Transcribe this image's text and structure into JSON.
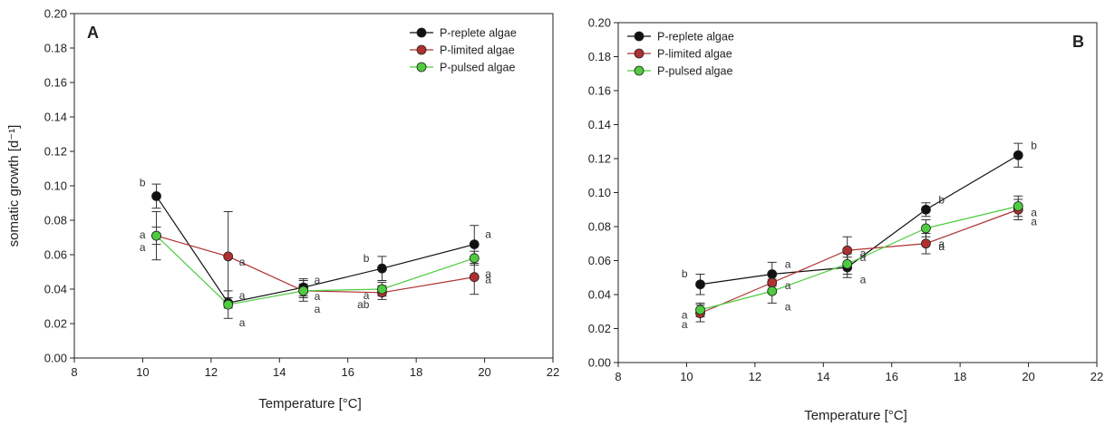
{
  "chart_data": [
    {
      "type": "scatter",
      "panel_label": "A",
      "xlabel": "Temperature [°C]",
      "ylabel": "somatic growth [d⁻¹]",
      "xlim": [
        8,
        22
      ],
      "ylim": [
        0,
        0.2
      ],
      "xticks": [
        "8",
        "10",
        "12",
        "14",
        "16",
        "18",
        "20",
        "22"
      ],
      "yticks": [
        "0.00",
        "0.02",
        "0.04",
        "0.06",
        "0.08",
        "0.10",
        "0.12",
        "0.14",
        "0.16",
        "0.18",
        "0.20"
      ],
      "legend_position": "top-right",
      "grid": false,
      "series": [
        {
          "name": "P-replete algae",
          "color": "#111111",
          "x": [
            10.4,
            12.5,
            14.7,
            17.0,
            19.7
          ],
          "y": [
            0.094,
            0.032,
            0.041,
            0.052,
            0.066
          ],
          "err": [
            0.007,
            0.003,
            0.005,
            0.007,
            0.011
          ],
          "labels": [
            "b",
            "a",
            "a",
            "b",
            "a"
          ]
        },
        {
          "name": "P-limited algae",
          "color": "#b03030",
          "x": [
            10.4,
            12.5,
            14.7,
            17.0,
            19.7
          ],
          "y": [
            0.071,
            0.059,
            0.039,
            0.038,
            0.047
          ],
          "err": [
            0.005,
            0.026,
            0.004,
            0.004,
            0.01
          ],
          "labels": [
            "a",
            "a",
            "a",
            "a",
            "a"
          ]
        },
        {
          "name": "P-pulsed algae",
          "color": "#4ecb3f",
          "x": [
            10.4,
            12.5,
            14.7,
            17.0,
            19.7
          ],
          "y": [
            0.071,
            0.031,
            0.039,
            0.04,
            0.058
          ],
          "err": [
            0.014,
            0.008,
            0.006,
            0.004,
            0.004
          ],
          "labels": [
            "a",
            "a",
            "a",
            "ab",
            "a"
          ]
        }
      ]
    },
    {
      "type": "scatter",
      "panel_label": "B",
      "xlabel": "Temperature [°C]",
      "ylabel": "",
      "xlim": [
        8,
        22
      ],
      "ylim": [
        0,
        0.2
      ],
      "xticks": [
        "8",
        "10",
        "12",
        "14",
        "16",
        "18",
        "20",
        "22"
      ],
      "yticks": [
        "0.00",
        "0.02",
        "0.04",
        "0.06",
        "0.08",
        "0.10",
        "0.12",
        "0.14",
        "0.16",
        "0.18",
        "0.20"
      ],
      "legend_position": "top-left",
      "grid": false,
      "series": [
        {
          "name": "P-replete algae",
          "color": "#111111",
          "x": [
            10.4,
            12.5,
            14.7,
            17.0,
            19.7
          ],
          "y": [
            0.046,
            0.052,
            0.056,
            0.09,
            0.122
          ],
          "err": [
            0.006,
            0.007,
            0.006,
            0.004,
            0.007
          ],
          "labels": [
            "b",
            "a",
            "a",
            "b",
            "b"
          ]
        },
        {
          "name": "P-limited algae",
          "color": "#b03030",
          "x": [
            10.4,
            12.5,
            14.7,
            17.0,
            19.7
          ],
          "y": [
            0.029,
            0.047,
            0.066,
            0.07,
            0.09
          ],
          "err": [
            0.005,
            0.006,
            0.008,
            0.006,
            0.006
          ],
          "labels": [
            "a",
            "a",
            "a",
            "a",
            "a"
          ]
        },
        {
          "name": "P-pulsed algae",
          "color": "#4ecb3f",
          "x": [
            10.4,
            12.5,
            14.7,
            17.0,
            19.7
          ],
          "y": [
            0.031,
            0.042,
            0.058,
            0.079,
            0.092
          ],
          "err": [
            0.004,
            0.007,
            0.006,
            0.005,
            0.006
          ],
          "labels": [
            "a",
            "a",
            "a",
            "a",
            "a"
          ]
        }
      ]
    }
  ]
}
